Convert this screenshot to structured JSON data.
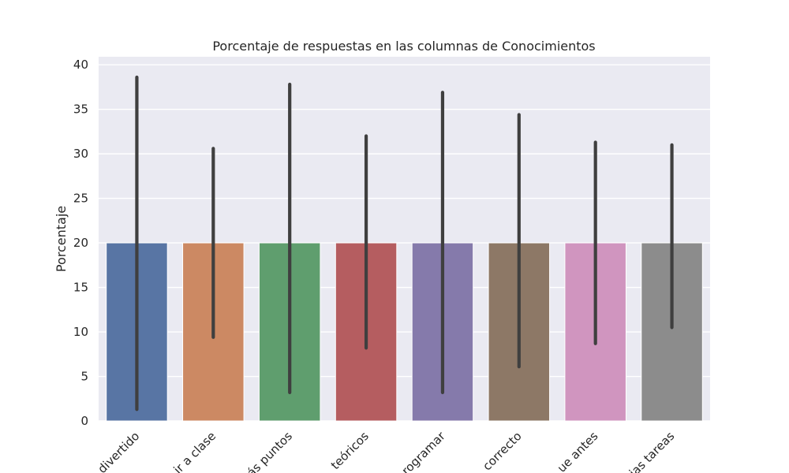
{
  "chart_data": {
    "type": "bar",
    "title": "Porcentaje de respuestas en las columnas de Conocimientos",
    "xlabel": "",
    "ylabel": "Porcentaje",
    "ylim": [
      0,
      40.9
    ],
    "yticks": [
      0,
      5,
      10,
      15,
      20,
      25,
      30,
      35,
      40
    ],
    "grid": true,
    "legend": "none",
    "categories": [
      "divertido",
      "ir a clase",
      "ás puntos",
      "teóricos",
      "rogramar",
      "correcto",
      "ue antes",
      "ias tareas"
    ],
    "values": [
      20,
      20,
      20,
      20,
      20,
      20,
      20,
      20
    ],
    "error_low": [
      1.3,
      9.4,
      3.2,
      8.2,
      3.2,
      6.1,
      8.7,
      10.5
    ],
    "error_high": [
      38.6,
      30.6,
      37.8,
      32.0,
      36.9,
      34.4,
      31.3,
      31.0
    ],
    "colors": [
      "#5875a4",
      "#cc8963",
      "#5f9e6e",
      "#b55d60",
      "#857aab",
      "#8d7866",
      "#d095bf",
      "#8c8c8c"
    ],
    "background": "#eaeaf2",
    "error_color": "#3f3f3f"
  }
}
